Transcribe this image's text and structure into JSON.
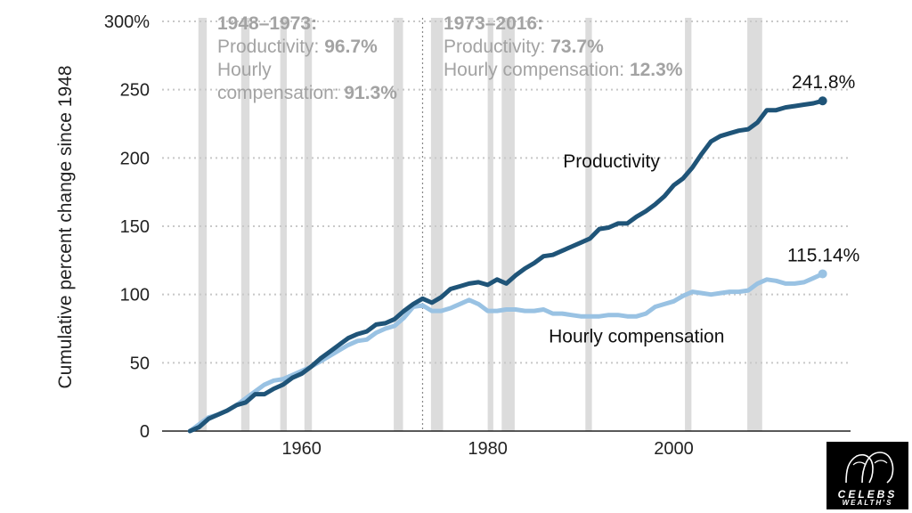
{
  "chart_data": {
    "type": "line",
    "ylabel": "Cumulative percent change since 1948",
    "xlim": [
      1945,
      2019
    ],
    "ylim": [
      0,
      300
    ],
    "yticks": [
      0,
      50,
      100,
      150,
      200,
      250,
      300
    ],
    "ytick_labels": [
      "0",
      "50",
      "100",
      "150",
      "200",
      "250",
      "300%"
    ],
    "xticks": [
      1960,
      1980,
      2000
    ],
    "xtick_labels": [
      "1960",
      "1980",
      "2000"
    ],
    "grid": "horizontal dotted",
    "recession_bands": [
      [
        1948.9,
        1949.8
      ],
      [
        1953.5,
        1954.4
      ],
      [
        1957.7,
        1958.4
      ],
      [
        1960.3,
        1961.1
      ],
      [
        1969.9,
        1970.9
      ],
      [
        1973.9,
        1975.2
      ],
      [
        1980.0,
        1980.6
      ],
      [
        1981.5,
        1982.9
      ],
      [
        1990.5,
        1991.2
      ],
      [
        2001.2,
        2001.9
      ],
      [
        2007.9,
        2009.5
      ]
    ],
    "divider_year": 1973,
    "annotations": [
      {
        "title": "1948–1973:",
        "lines": [
          {
            "label": "Productivity: ",
            "value": "96.7%"
          },
          {
            "label": "Hourly",
            "value": ""
          },
          {
            "label": "compensation: ",
            "value": "91.3%"
          }
        ]
      },
      {
        "title": "1973–2016:",
        "lines": [
          {
            "label": "Productivity: ",
            "value": "73.7%"
          },
          {
            "label": "Hourly compensation: ",
            "value": "12.3%"
          }
        ]
      }
    ],
    "series": [
      {
        "name": "Productivity",
        "color": "#1f5478",
        "end_label": "241.8%",
        "x": [
          1948,
          1949,
          1950,
          1951,
          1952,
          1953,
          1954,
          1955,
          1956,
          1957,
          1958,
          1959,
          1960,
          1961,
          1962,
          1963,
          1964,
          1965,
          1966,
          1967,
          1968,
          1969,
          1970,
          1971,
          1972,
          1973,
          1974,
          1975,
          1976,
          1977,
          1978,
          1979,
          1980,
          1981,
          1982,
          1983,
          1984,
          1985,
          1986,
          1987,
          1988,
          1989,
          1990,
          1991,
          1992,
          1993,
          1994,
          1995,
          1996,
          1997,
          1998,
          1999,
          2000,
          2001,
          2002,
          2003,
          2004,
          2005,
          2006,
          2007,
          2008,
          2009,
          2010,
          2011,
          2012,
          2013,
          2014,
          2015,
          2016
        ],
        "values": [
          0,
          3,
          9,
          12,
          15,
          19,
          21,
          27,
          27,
          31,
          34,
          39,
          42,
          47,
          53,
          58,
          63,
          68,
          71,
          73,
          78,
          79,
          82,
          88,
          93,
          97,
          94,
          98,
          104,
          106,
          108,
          109,
          107,
          111,
          108,
          114,
          119,
          123,
          128,
          129,
          132,
          135,
          138,
          141,
          148,
          149,
          152,
          152,
          157,
          161,
          166,
          172,
          180,
          185,
          193,
          203,
          212,
          216,
          218,
          220,
          221,
          226,
          235,
          235,
          237,
          238,
          239,
          240,
          241.8
        ]
      },
      {
        "name": "Hourly compensation",
        "color": "#99c2e3",
        "end_label": "115.14%",
        "x": [
          1948,
          1949,
          1950,
          1951,
          1952,
          1953,
          1954,
          1955,
          1956,
          1957,
          1958,
          1959,
          1960,
          1961,
          1962,
          1963,
          1964,
          1965,
          1966,
          1967,
          1968,
          1969,
          1970,
          1971,
          1972,
          1973,
          1974,
          1975,
          1976,
          1977,
          1978,
          1979,
          1980,
          1981,
          1982,
          1983,
          1984,
          1985,
          1986,
          1987,
          1988,
          1989,
          1990,
          1991,
          1992,
          1993,
          1994,
          1995,
          1996,
          1997,
          1998,
          1999,
          2000,
          2001,
          2002,
          2003,
          2004,
          2005,
          2006,
          2007,
          2008,
          2009,
          2010,
          2011,
          2012,
          2013,
          2014,
          2015,
          2016
        ],
        "values": [
          0,
          5,
          10,
          12,
          15,
          19,
          24,
          29,
          34,
          37,
          38,
          41,
          44,
          47,
          51,
          55,
          59,
          63,
          66,
          67,
          72,
          75,
          77,
          83,
          91,
          92,
          88,
          88,
          90,
          93,
          96,
          93,
          88,
          88,
          89,
          89,
          88,
          88,
          89,
          86,
          86,
          85,
          84,
          84,
          84,
          85,
          85,
          84,
          84,
          86,
          91,
          93,
          95,
          99,
          102,
          101,
          100,
          101,
          102,
          102,
          103,
          108,
          111,
          110,
          108,
          108,
          109,
          112,
          115.14
        ]
      }
    ]
  }
}
